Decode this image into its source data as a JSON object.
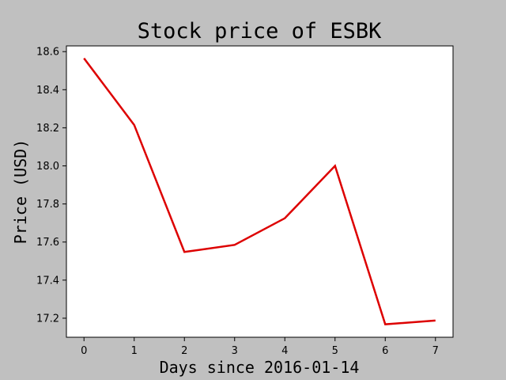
{
  "chart_data": {
    "type": "line",
    "title": "Stock price of ESBK",
    "xlabel": "Days since 2016-01-14",
    "ylabel": "Price (USD)",
    "x": [
      0,
      1,
      2,
      3,
      4,
      5,
      6,
      7
    ],
    "series": [
      {
        "values": [
          18.565,
          18.215,
          17.548,
          17.585,
          17.725,
          18.0,
          17.168,
          17.188
        ],
        "color": "#dd0000"
      }
    ],
    "xticks": [
      "0",
      "1",
      "2",
      "3",
      "4",
      "5",
      "6",
      "7"
    ],
    "yticks": [
      "17.2",
      "17.4",
      "17.6",
      "17.8",
      "18.0",
      "18.2",
      "18.4",
      "18.6"
    ],
    "xlim": [
      -0.35,
      7.35
    ],
    "ylim": [
      17.1,
      18.63
    ],
    "grid": false,
    "background_color": "#c0c0c0",
    "plot_background_color": "#ffffff"
  }
}
